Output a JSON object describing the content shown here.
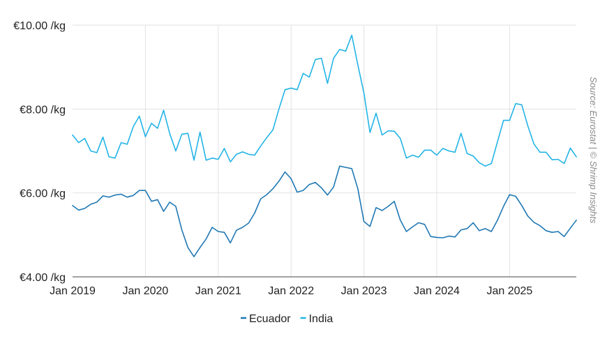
{
  "chart_data": {
    "type": "line",
    "x_start": "2019-01",
    "x_interval": "monthly",
    "x_ticks": [
      "Jan 2019",
      "Jan 2020",
      "Jan 2021",
      "Jan 2022",
      "Jan 2023",
      "Jan 2024",
      "Jan 2025"
    ],
    "y_ticks": [
      "€10.00 /kg",
      "€8.00 /kg",
      "€6.00 /kg",
      "€4.00 /kg"
    ],
    "ylim": [
      4,
      10
    ],
    "grid": "vertical and horizontal",
    "legend_position": "bottom-center",
    "source_note": "Source: Eurostat | © Shrimp Insights",
    "series": [
      {
        "name": "Ecuador",
        "color": "#1f78b4",
        "values": [
          5.7,
          5.59,
          5.63,
          5.73,
          5.78,
          5.93,
          5.9,
          5.95,
          5.97,
          5.9,
          5.94,
          6.06,
          6.06,
          5.8,
          5.84,
          5.56,
          5.78,
          5.68,
          5.12,
          4.7,
          4.48,
          4.7,
          4.9,
          5.18,
          5.08,
          5.06,
          4.81,
          5.11,
          5.18,
          5.28,
          5.52,
          5.86,
          5.96,
          6.1,
          6.28,
          6.5,
          6.34,
          6.02,
          6.06,
          6.2,
          6.25,
          6.12,
          5.95,
          6.14,
          6.64,
          6.61,
          6.58,
          6.1,
          5.32,
          5.2,
          5.65,
          5.58,
          5.68,
          5.8,
          5.35,
          5.08,
          5.19,
          5.29,
          5.25,
          4.96,
          4.94,
          4.93,
          4.97,
          4.95,
          5.12,
          5.15,
          5.29,
          5.1,
          5.15,
          5.08,
          5.35,
          5.68,
          5.96,
          5.92,
          5.7,
          5.45,
          5.3,
          5.22,
          5.1,
          5.06,
          5.08,
          4.96,
          5.16,
          5.35
        ]
      },
      {
        "name": "India",
        "color": "#23b4e6",
        "values": [
          7.38,
          7.2,
          7.3,
          7.0,
          6.96,
          7.33,
          6.86,
          6.83,
          7.2,
          7.16,
          7.58,
          7.83,
          7.34,
          7.66,
          7.54,
          7.97,
          7.42,
          7.0,
          7.4,
          7.42,
          6.78,
          7.45,
          6.78,
          6.83,
          6.8,
          7.06,
          6.74,
          6.92,
          6.98,
          6.92,
          6.9,
          7.12,
          7.32,
          7.5,
          8.0,
          8.46,
          8.5,
          8.46,
          8.85,
          8.76,
          9.18,
          9.21,
          8.61,
          9.21,
          9.42,
          9.38,
          9.76,
          9.05,
          8.38,
          7.44,
          7.9,
          7.38,
          7.48,
          7.47,
          7.3,
          6.83,
          6.9,
          6.85,
          7.02,
          7.02,
          6.9,
          7.06,
          7.0,
          6.97,
          7.42,
          6.94,
          6.88,
          6.72,
          6.64,
          6.7,
          7.22,
          7.73,
          7.73,
          8.13,
          8.1,
          7.6,
          7.17,
          6.97,
          6.97,
          6.79,
          6.8,
          6.7,
          7.07,
          6.86
        ]
      }
    ]
  }
}
